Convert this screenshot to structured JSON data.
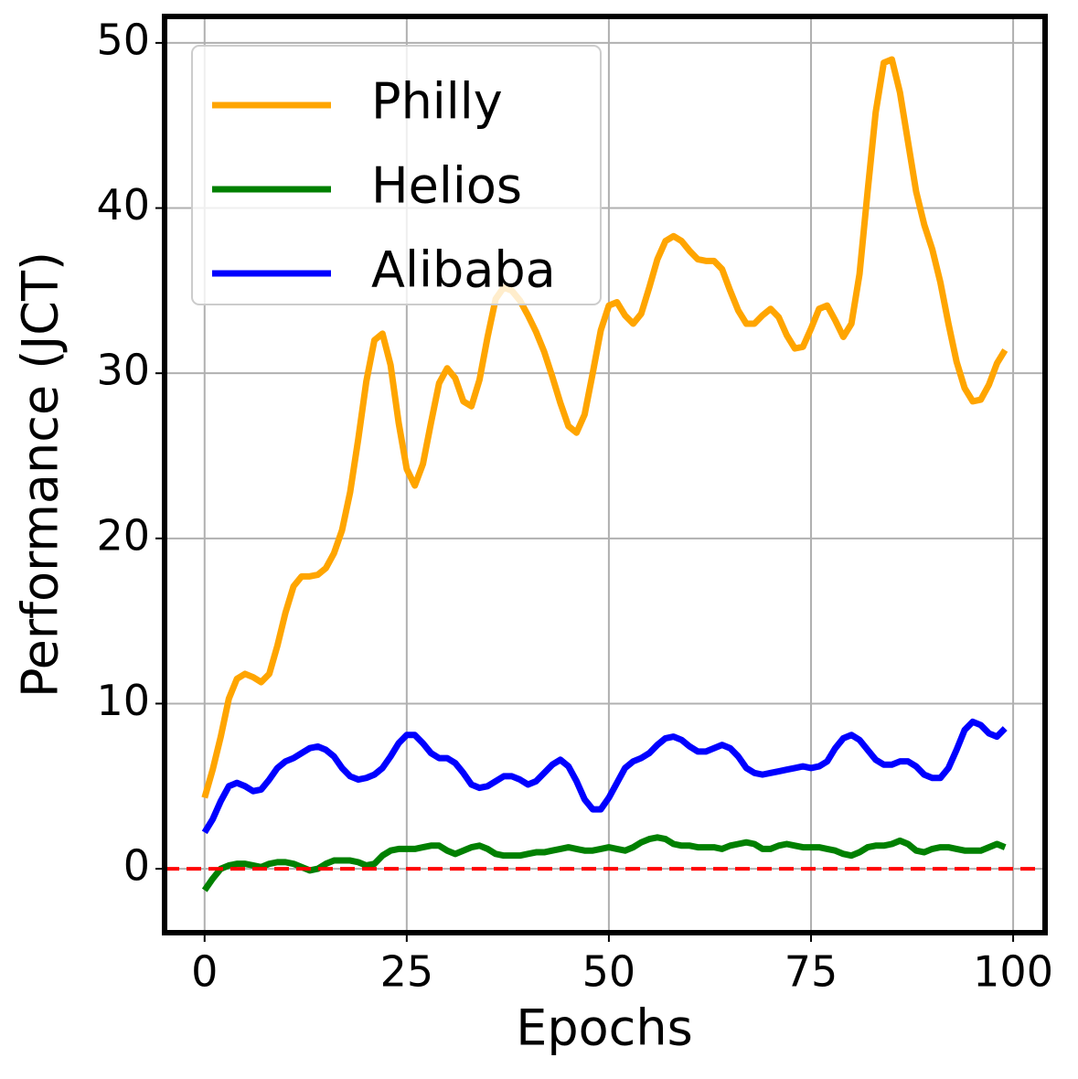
{
  "chart_data": {
    "type": "line",
    "x_label": "Epochs",
    "y_label": "Performance (JCT)",
    "x": [
      0,
      1,
      2,
      3,
      4,
      5,
      6,
      7,
      8,
      9,
      10,
      11,
      12,
      13,
      14,
      15,
      16,
      17,
      18,
      19,
      20,
      21,
      22,
      23,
      24,
      25,
      26,
      27,
      28,
      29,
      30,
      31,
      32,
      33,
      34,
      35,
      36,
      37,
      38,
      39,
      40,
      41,
      42,
      43,
      44,
      45,
      46,
      47,
      48,
      49,
      50,
      51,
      52,
      53,
      54,
      55,
      56,
      57,
      58,
      59,
      60,
      61,
      62,
      63,
      64,
      65,
      66,
      67,
      68,
      69,
      70,
      71,
      72,
      73,
      74,
      75,
      76,
      77,
      78,
      79,
      80,
      81,
      82,
      83,
      84,
      85,
      86,
      87,
      88,
      89,
      90,
      91,
      92,
      93,
      94,
      95,
      96,
      97,
      98,
      99
    ],
    "series": [
      {
        "name": "Philly",
        "color": "#ffa500",
        "values": [
          4.3,
          6,
          8,
          10.3,
          11.5,
          11.8,
          11.6,
          11.3,
          11.8,
          13.5,
          15.5,
          17.1,
          17.7,
          17.7,
          17.8,
          18.2,
          19.1,
          20.5,
          22.8,
          26,
          29.5,
          32,
          32.4,
          30.5,
          27,
          24.2,
          23.2,
          24.5,
          27,
          29.4,
          30.3,
          29.7,
          28.3,
          28,
          29.6,
          32.2,
          34.5,
          35.2,
          35,
          34.4,
          33.5,
          32.5,
          31.3,
          29.8,
          28.2,
          26.8,
          26.4,
          27.5,
          30,
          32.6,
          34.1,
          34.3,
          33.5,
          33,
          33.6,
          35.2,
          36.9,
          38,
          38.3,
          38,
          37.4,
          36.9,
          36.8,
          36.8,
          36.3,
          35,
          33.8,
          33,
          33,
          33.5,
          33.9,
          33.4,
          32.3,
          31.5,
          31.6,
          32.7,
          33.9,
          34.1,
          33.2,
          32.2,
          33,
          36,
          41,
          45.8,
          48.8,
          49,
          47,
          44,
          41,
          39,
          37.5,
          35.5,
          33,
          30.7,
          29.1,
          28.3,
          28.4,
          29.3,
          30.6,
          31.4
        ]
      },
      {
        "name": "Helios",
        "color": "#008000",
        "values": [
          -1.3,
          -0.6,
          0,
          0.2,
          0.3,
          0.3,
          0.2,
          0.1,
          0.3,
          0.4,
          0.4,
          0.3,
          0.1,
          -0.1,
          0,
          0.3,
          0.5,
          0.5,
          0.5,
          0.4,
          0.2,
          0.3,
          0.8,
          1.1,
          1.2,
          1.2,
          1.2,
          1.3,
          1.4,
          1.4,
          1.1,
          0.9,
          1.1,
          1.3,
          1.4,
          1.2,
          0.9,
          0.8,
          0.8,
          0.8,
          0.9,
          1,
          1,
          1.1,
          1.2,
          1.3,
          1.2,
          1.1,
          1.1,
          1.2,
          1.3,
          1.2,
          1.1,
          1.3,
          1.6,
          1.8,
          1.9,
          1.8,
          1.5,
          1.4,
          1.4,
          1.3,
          1.3,
          1.3,
          1.2,
          1.4,
          1.5,
          1.6,
          1.5,
          1.2,
          1.2,
          1.4,
          1.5,
          1.4,
          1.3,
          1.3,
          1.3,
          1.2,
          1.1,
          0.9,
          0.8,
          1,
          1.3,
          1.4,
          1.4,
          1.5,
          1.7,
          1.5,
          1.1,
          1,
          1.2,
          1.3,
          1.3,
          1.2,
          1.1,
          1.1,
          1.1,
          1.3,
          1.5,
          1.3
        ]
      },
      {
        "name": "Alibaba",
        "color": "#0000ff",
        "values": [
          2.2,
          3,
          4.1,
          5,
          5.2,
          5,
          4.7,
          4.8,
          5.4,
          6.1,
          6.5,
          6.7,
          7,
          7.3,
          7.4,
          7.2,
          6.8,
          6.1,
          5.6,
          5.4,
          5.5,
          5.7,
          6.1,
          6.8,
          7.6,
          8.1,
          8.1,
          7.6,
          7,
          6.7,
          6.7,
          6.4,
          5.8,
          5.1,
          4.9,
          5,
          5.3,
          5.6,
          5.6,
          5.4,
          5.1,
          5.3,
          5.8,
          6.3,
          6.6,
          6.2,
          5.3,
          4.2,
          3.6,
          3.6,
          4.3,
          5.2,
          6.1,
          6.5,
          6.7,
          7,
          7.5,
          7.9,
          8,
          7.8,
          7.4,
          7.1,
          7.1,
          7.3,
          7.5,
          7.3,
          6.8,
          6.1,
          5.8,
          5.7,
          5.8,
          5.9,
          6,
          6.1,
          6.2,
          6.1,
          6.2,
          6.5,
          7.3,
          7.9,
          8.1,
          7.8,
          7.2,
          6.6,
          6.3,
          6.3,
          6.5,
          6.5,
          6.2,
          5.7,
          5.5,
          5.5,
          6.1,
          7.2,
          8.4,
          8.9,
          8.7,
          8.2,
          8,
          8.5
        ]
      }
    ],
    "reference_line": {
      "value": 0,
      "color": "#ff0000",
      "dashed": true
    },
    "xlim": [
      -4.95,
      103.95
    ],
    "xticks": [
      0,
      25,
      50,
      75,
      100
    ],
    "ylim": [
      -3.87,
      51.6
    ],
    "yticks": [
      0,
      10,
      20,
      30,
      40,
      50
    ],
    "grid": true,
    "legend": "upper left"
  }
}
